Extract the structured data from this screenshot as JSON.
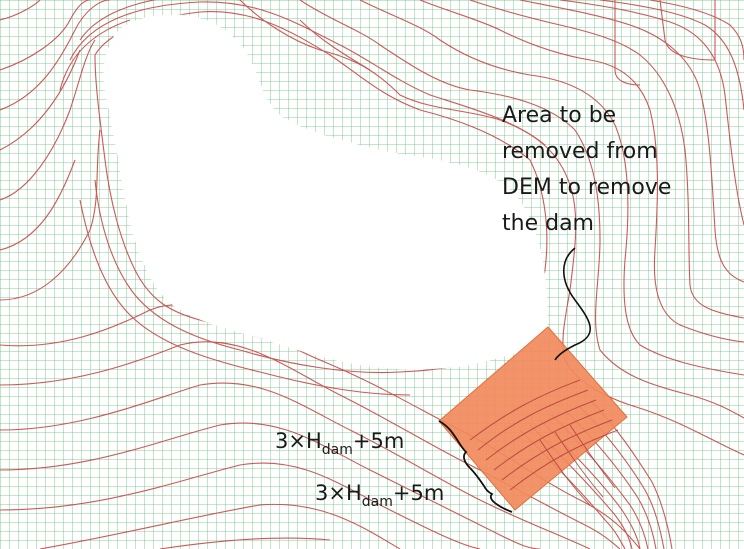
{
  "annotations": {
    "removal_area_lines": [
      "Area to be",
      "removed from",
      "DEM to remove",
      "the dam"
    ],
    "offset_label_1": {
      "prefix": "3×H",
      "sub": "dam",
      "suffix": "+5m"
    },
    "offset_label_2": {
      "prefix": "3×H",
      "sub": "dam",
      "suffix": "+5m"
    }
  },
  "colors": {
    "grid": "#2aa84a",
    "contour": "#c9474a",
    "removal_area": "#f28a5c",
    "lake": "#ffffff",
    "bracket": "#111111"
  }
}
